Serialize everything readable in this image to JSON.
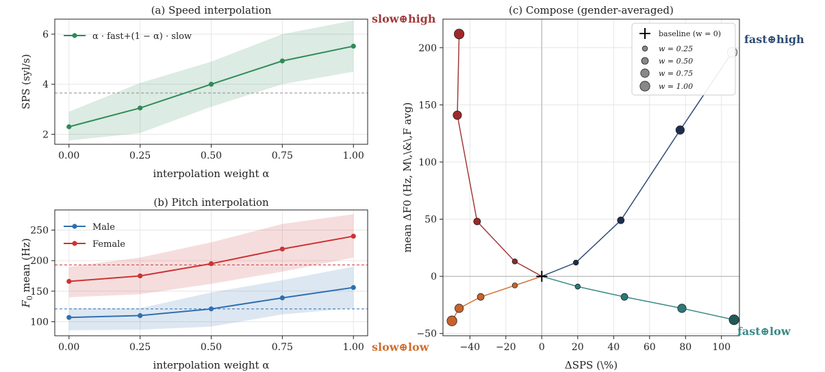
{
  "colors": {
    "speed": "#2e8b57",
    "male": "#2f6fb0",
    "female": "#cc3333",
    "slow_high": "#a23a3a",
    "fast_high": "#2d4a73",
    "slow_low": "#d07030",
    "fast_low": "#3a8a88"
  },
  "chart_data": [
    {
      "id": "a",
      "type": "line",
      "title": "(a) Speed interpolation",
      "xlabel": "interpolation weight α",
      "ylabel": "SPS (syl/s)",
      "x": [
        0.0,
        0.25,
        0.5,
        0.75,
        1.0
      ],
      "xlim": [
        -0.05,
        1.05
      ],
      "ylim": [
        1.6,
        6.6
      ],
      "xticks": [
        "0.00",
        "0.25",
        "0.50",
        "0.75",
        "1.00"
      ],
      "yticks": [
        2,
        4,
        6
      ],
      "grid": true,
      "legend_position": "upper-left",
      "reference_line": 3.65,
      "series": [
        {
          "name": "α · fast+(1 − α) · slow",
          "values": [
            2.3,
            3.05,
            4.0,
            4.93,
            5.52
          ],
          "band_low": [
            1.75,
            2.05,
            3.1,
            4.0,
            4.5
          ],
          "band_high": [
            2.9,
            4.05,
            4.9,
            6.0,
            6.55
          ]
        }
      ]
    },
    {
      "id": "b",
      "type": "line",
      "title": "(b) Pitch interpolation",
      "xlabel": "interpolation weight α",
      "ylabel": "F0 mean (Hz)",
      "x": [
        0.0,
        0.25,
        0.5,
        0.75,
        1.0
      ],
      "xlim": [
        -0.05,
        1.05
      ],
      "ylim": [
        77,
        283
      ],
      "xticks": [
        "0.00",
        "0.25",
        "0.50",
        "0.75",
        "1.00"
      ],
      "yticks": [
        100,
        150,
        200,
        250
      ],
      "grid": true,
      "legend_position": "upper-left",
      "series": [
        {
          "name": "Male",
          "values": [
            107,
            110,
            121,
            139,
            156
          ],
          "band_low": [
            86,
            87,
            92,
            112,
            122
          ],
          "band_high": [
            122,
            122,
            148,
            168,
            190
          ],
          "reference_line": 121
        },
        {
          "name": "Female",
          "values": [
            166,
            175,
            195,
            219,
            240
          ],
          "band_low": [
            140,
            145,
            162,
            182,
            205
          ],
          "band_high": [
            190,
            205,
            230,
            260,
            276
          ],
          "reference_line": 193
        }
      ]
    },
    {
      "id": "c",
      "type": "scatter",
      "title": "(c) Compose (gender-averaged)",
      "xlabel": "ΔSPS (\\%)",
      "ylabel": "mean ΔF0 (Hz, M\\,\\&\\,F avg)",
      "xlim": [
        -55,
        110
      ],
      "ylim": [
        -52,
        225
      ],
      "xticks": [
        -40,
        -20,
        0,
        20,
        40,
        60,
        80,
        100
      ],
      "yticks": [
        -50,
        0,
        50,
        100,
        150,
        200
      ],
      "grid": true,
      "legend_position": "upper-right",
      "legend": {
        "baseline": "baseline (w = 0)",
        "weights": [
          "w = 0.25",
          "w = 0.50",
          "w = 0.75",
          "w = 1.00"
        ]
      },
      "series": [
        {
          "name": "slow⊕high",
          "points": [
            [
              -15,
              13
            ],
            [
              -36,
              48
            ],
            [
              -47,
              141
            ],
            [
              -46,
              212
            ]
          ],
          "colors": [
            "#8a2a2a",
            "#a02828",
            "#a02828",
            "#a02828"
          ]
        },
        {
          "name": "fast⊕high",
          "points": [
            [
              19,
              12
            ],
            [
              44,
              49
            ],
            [
              77,
              128
            ],
            [
              106,
              196
            ]
          ],
          "colors": [
            "#1c2e4d",
            "#1c2e4d",
            "#1c2e4d",
            "#d4d8de"
          ]
        },
        {
          "name": "slow⊕low",
          "points": [
            [
              -15,
              -8
            ],
            [
              -34,
              -18
            ],
            [
              -46,
              -28
            ],
            [
              -50,
              -39
            ]
          ],
          "colors": [
            "#c8632a",
            "#c8632a",
            "#c8632a",
            "#c8632a"
          ]
        },
        {
          "name": "fast⊕low",
          "points": [
            [
              20,
              -9
            ],
            [
              46,
              -18
            ],
            [
              78,
              -28
            ],
            [
              107,
              -38
            ]
          ],
          "colors": [
            "#2a7a78",
            "#2a7a78",
            "#2a7a78",
            "#1f5a58"
          ]
        }
      ]
    }
  ]
}
